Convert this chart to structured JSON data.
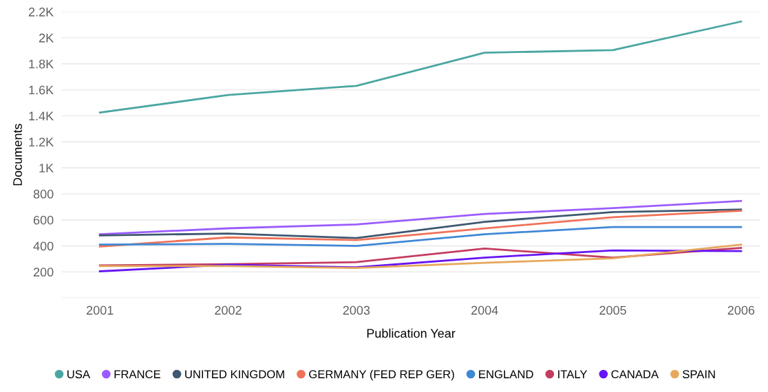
{
  "chart_data": {
    "type": "line",
    "xlabel": "Publication Year",
    "ylabel": "Documents",
    "x": [
      2001,
      2002,
      2003,
      2004,
      2005,
      2006
    ],
    "xlim": [
      2000.7,
      2006.15
    ],
    "xticks": [
      2001,
      2002,
      2003,
      2004,
      2005,
      2006
    ],
    "ylim": [
      0,
      2200
    ],
    "yticks": [
      {
        "value": 0,
        "label": null
      },
      200,
      400,
      600,
      800,
      {
        "value": 1000,
        "label": "1K"
      },
      {
        "value": 1200,
        "label": "1.2K"
      },
      {
        "value": 1400,
        "label": "1.4K"
      },
      {
        "value": 1600,
        "label": "1.6K"
      },
      {
        "value": 1800,
        "label": "1.8K"
      },
      {
        "value": 2000,
        "label": "2K"
      },
      {
        "value": 2200,
        "label": "2.2K"
      }
    ],
    "grid": "y",
    "legend": "bottom",
    "marker": "none",
    "line_style": "solid",
    "series": [
      {
        "name": "USA",
        "color": "#4aa6a2",
        "values": [
          1425,
          1560,
          1630,
          1885,
          1905,
          2125
        ]
      },
      {
        "name": "FRANCE",
        "color": "#9b5cff",
        "values": [
          490,
          535,
          565,
          645,
          690,
          745
        ]
      },
      {
        "name": "UNITED KINGDOM",
        "color": "#3e5870",
        "values": [
          480,
          495,
          460,
          585,
          660,
          680
        ]
      },
      {
        "name": "GERMANY (FED REP GER)",
        "color": "#f07258",
        "values": [
          395,
          465,
          445,
          535,
          620,
          670
        ]
      },
      {
        "name": "ENGLAND",
        "color": "#3f88d6",
        "values": [
          410,
          415,
          400,
          490,
          545,
          545
        ]
      },
      {
        "name": "ITALY",
        "color": "#c43c60",
        "values": [
          250,
          260,
          275,
          380,
          310,
          385
        ]
      },
      {
        "name": "CANADA",
        "color": "#6614f5",
        "values": [
          205,
          255,
          235,
          310,
          365,
          360
        ]
      },
      {
        "name": "SPAIN",
        "color": "#e6a85c",
        "values": [
          245,
          245,
          230,
          270,
          305,
          410
        ]
      }
    ]
  }
}
